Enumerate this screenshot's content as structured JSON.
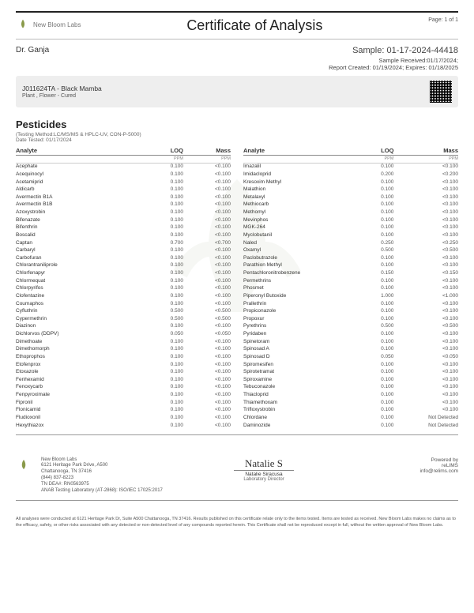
{
  "header": {
    "lab_name": "New Bloom Labs",
    "title": "Certificate of Analysis",
    "page": "Page: 1 of 1"
  },
  "meta": {
    "client": "Dr. Ganja",
    "sample_label": "Sample: 01-17-2024-44418",
    "received": "Sample Received:01/17/2024;",
    "report_created": "Report Created: 01/19/2024; Expires: 01/18/2025"
  },
  "infobar": {
    "title": "J011624TA - Black Mamba",
    "subtitle": "Plant , Flower - Cured"
  },
  "section": {
    "title": "Pesticides",
    "method": "(Testing Method:LC/MS/MS & HPLC-UV, CON-P-5000)",
    "date": "Date Tested: 01/17/2024"
  },
  "headers": {
    "analyte": "Analyte",
    "loq": "LOQ",
    "mass": "Mass",
    "unit": "PPM"
  },
  "left": [
    [
      "Acephate",
      "0.100",
      "<0.100"
    ],
    [
      "Acequinocyl",
      "0.100",
      "<0.100"
    ],
    [
      "Acetamiprid",
      "0.100",
      "<0.100"
    ],
    [
      "Aldicarb",
      "0.100",
      "<0.100"
    ],
    [
      "Avermectin B1A",
      "0.100",
      "<0.100"
    ],
    [
      "Avermectin B1B",
      "0.100",
      "<0.100"
    ],
    [
      "Azoxystrobin",
      "0.100",
      "<0.100"
    ],
    [
      "Bifenazate",
      "0.100",
      "<0.100"
    ],
    [
      "Bifenthrin",
      "0.100",
      "<0.100"
    ],
    [
      "Boscalid",
      "0.100",
      "<0.100"
    ],
    [
      "Captan",
      "0.700",
      "<0.700"
    ],
    [
      "Carbaryl",
      "0.100",
      "<0.100"
    ],
    [
      "Carbofuran",
      "0.100",
      "<0.100"
    ],
    [
      "Chlorantraniliprole",
      "0.100",
      "<0.100"
    ],
    [
      "Chlorfenapyr",
      "0.100",
      "<0.100"
    ],
    [
      "Chlormequat",
      "0.100",
      "<0.100"
    ],
    [
      "Chlorpyrifos",
      "0.100",
      "<0.100"
    ],
    [
      "Clofentazine",
      "0.100",
      "<0.100"
    ],
    [
      "Coumaphos",
      "0.100",
      "<0.100"
    ],
    [
      "Cyfluthrin",
      "0.500",
      "<0.500"
    ],
    [
      "Cypermethrin",
      "0.500",
      "<0.500"
    ],
    [
      "Diazinon",
      "0.100",
      "<0.100"
    ],
    [
      "Dichlorvos (DDPV)",
      "0.050",
      "<0.050"
    ],
    [
      "Dimethoate",
      "0.100",
      "<0.100"
    ],
    [
      "Dimethomorph",
      "0.100",
      "<0.100"
    ],
    [
      "Ethoprophos",
      "0.100",
      "<0.100"
    ],
    [
      "Etofenprox",
      "0.100",
      "<0.100"
    ],
    [
      "Etoxazole",
      "0.100",
      "<0.100"
    ],
    [
      "Fenhexamid",
      "0.100",
      "<0.100"
    ],
    [
      "Fenoxycarb",
      "0.100",
      "<0.100"
    ],
    [
      "Fenpyroximate",
      "0.100",
      "<0.100"
    ],
    [
      "Fipronil",
      "0.100",
      "<0.100"
    ],
    [
      "Flonicamid",
      "0.100",
      "<0.100"
    ],
    [
      "Fludioxonil",
      "0.100",
      "<0.100"
    ],
    [
      "Hexythiazox",
      "0.100",
      "<0.100"
    ]
  ],
  "right": [
    [
      "Imazalil",
      "0.100",
      "<0.100"
    ],
    [
      "Imidacloprid",
      "0.200",
      "<0.200"
    ],
    [
      "Kresoxim Methyl",
      "0.100",
      "<0.100"
    ],
    [
      "Malathion",
      "0.100",
      "<0.100"
    ],
    [
      "Metalaxyl",
      "0.100",
      "<0.100"
    ],
    [
      "Methiocarb",
      "0.100",
      "<0.100"
    ],
    [
      "Methomyl",
      "0.100",
      "<0.100"
    ],
    [
      "Mevinphos",
      "0.100",
      "<0.100"
    ],
    [
      "MGK-264",
      "0.100",
      "<0.100"
    ],
    [
      "Myclobutanil",
      "0.100",
      "<0.100"
    ],
    [
      "Naled",
      "0.250",
      "<0.250"
    ],
    [
      "Oxamyl",
      "0.500",
      "<0.500"
    ],
    [
      "Paclobutrazole",
      "0.100",
      "<0.100"
    ],
    [
      "Parathion Methyl",
      "0.100",
      "<0.100"
    ],
    [
      "Pentachloronitrobenzene",
      "0.150",
      "<0.150"
    ],
    [
      "Permethrins",
      "0.100",
      "<0.100"
    ],
    [
      "Phosmet",
      "0.100",
      "<0.100"
    ],
    [
      "Piperonyl Butoxide",
      "1.000",
      "<1.000"
    ],
    [
      "Prallethrin",
      "0.100",
      "<0.100"
    ],
    [
      "Propiconazole",
      "0.100",
      "<0.100"
    ],
    [
      "Propoxur",
      "0.100",
      "<0.100"
    ],
    [
      "Pyrethrins",
      "0.500",
      "<0.500"
    ],
    [
      "Pyridaben",
      "0.100",
      "<0.100"
    ],
    [
      "Spinetoram",
      "0.100",
      "<0.100"
    ],
    [
      "Spinosad A",
      "0.100",
      "<0.100"
    ],
    [
      "Spinosad D",
      "0.050",
      "<0.050"
    ],
    [
      "Spiromesifen",
      "0.100",
      "<0.100"
    ],
    [
      "Spirotetramat",
      "0.100",
      "<0.100"
    ],
    [
      "Spiroxamine",
      "0.100",
      "<0.100"
    ],
    [
      "Tebuconazole",
      "0.100",
      "<0.100"
    ],
    [
      "Thiacloprid",
      "0.100",
      "<0.100"
    ],
    [
      "Thiamethoxam",
      "0.100",
      "<0.100"
    ],
    [
      "Trifloxystrobin",
      "0.100",
      "<0.100"
    ],
    [
      "Chlordane",
      "0.100",
      "Not Detected"
    ],
    [
      "Daminozide",
      "0.100",
      "Not Detected"
    ]
  ],
  "footer": {
    "addr1": "New Bloom Labs",
    "addr2": "6121 Heritage Park Drive, A500",
    "addr3": "Chattanooga, TN 37416",
    "addr4": "(844) 837-8223",
    "addr5": "TN DEA#: RN0563975",
    "addr6": "ANAB Testing Laboratory (AT-2868): ISO/IEC 17025:2017",
    "sig_name": "Natalie Siracusa",
    "sig_title": "Laboratory Director",
    "powered": "Powered by",
    "relims": "reLIMS",
    "email": "info@relims.com"
  },
  "disclaimer": "All analyses were conducted at 6121 Heritage Park Dr, Suite A500 Chattanooga, TN 37416. Results published on this certificate relate only to the items tested. Items are tested as received. New Bloom Labs makes no claims as to the efficacy, safety, or other risks associated with any detected or non-detected level of any compounds reported herein. This Certificate shall not be reproduced except in full, without the written approval of New Bloom Labs."
}
